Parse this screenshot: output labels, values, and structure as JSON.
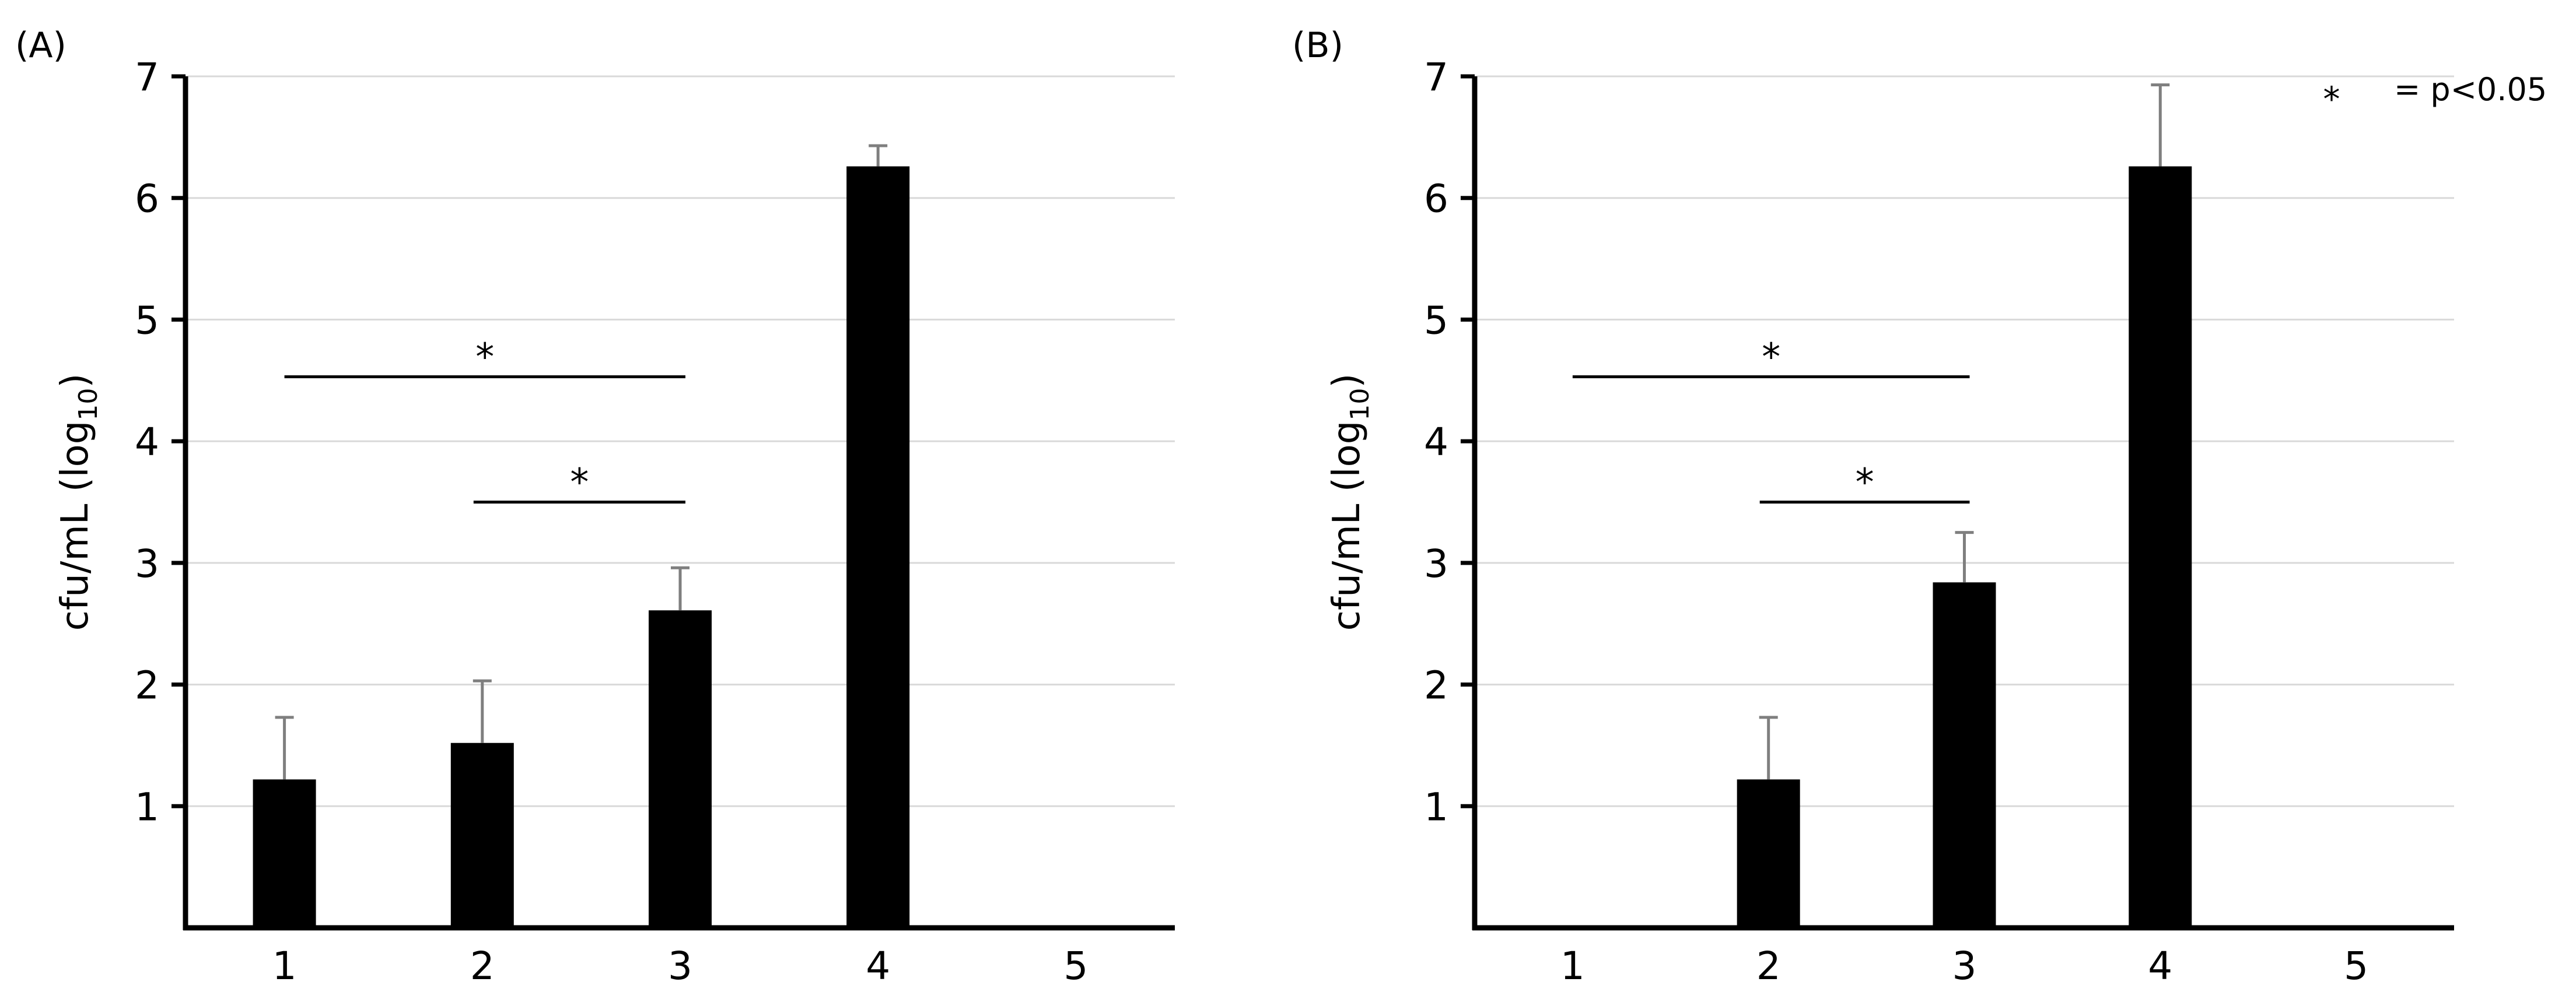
{
  "legend": {
    "symbol": "*",
    "text": "= p<0.05"
  },
  "chart_data": [
    {
      "type": "bar",
      "panel_label": "(A)",
      "categories": [
        "1",
        "2",
        "3",
        "4",
        "5"
      ],
      "values": [
        1.22,
        1.52,
        2.61,
        6.26,
        0
      ],
      "error_upper": [
        1.73,
        2.03,
        2.96,
        6.43,
        0
      ],
      "ylabel": "cfu/mL (log",
      "ylabel_subscript": "10",
      "ylabel_close": ")",
      "ylim": [
        0,
        7
      ],
      "yticks": [
        1,
        2,
        3,
        4,
        5,
        6,
        7
      ],
      "grid": true,
      "bar_color": "#000000",
      "grid_color": "#d9d9d9",
      "error_color": "#7f7f7f",
      "significance": [
        {
          "from": 1,
          "to": 3,
          "y": 4.53,
          "label": "*"
        },
        {
          "from": 2,
          "to": 3,
          "y": 3.5,
          "label": "*"
        }
      ]
    },
    {
      "type": "bar",
      "panel_label": "(B)",
      "categories": [
        "1",
        "2",
        "3",
        "4",
        "5"
      ],
      "values": [
        0,
        1.22,
        2.84,
        6.26,
        0
      ],
      "error_upper": [
        0,
        1.73,
        3.25,
        6.93,
        0
      ],
      "ylabel": "cfu/mL (log",
      "ylabel_subscript": "10",
      "ylabel_close": ")",
      "ylim": [
        0,
        7
      ],
      "yticks": [
        1,
        2,
        3,
        4,
        5,
        6,
        7
      ],
      "grid": true,
      "bar_color": "#000000",
      "grid_color": "#d9d9d9",
      "error_color": "#7f7f7f",
      "significance": [
        {
          "from": 1,
          "to": 3,
          "y": 4.53,
          "label": "*"
        },
        {
          "from": 2,
          "to": 3,
          "y": 3.5,
          "label": "*"
        }
      ]
    }
  ]
}
